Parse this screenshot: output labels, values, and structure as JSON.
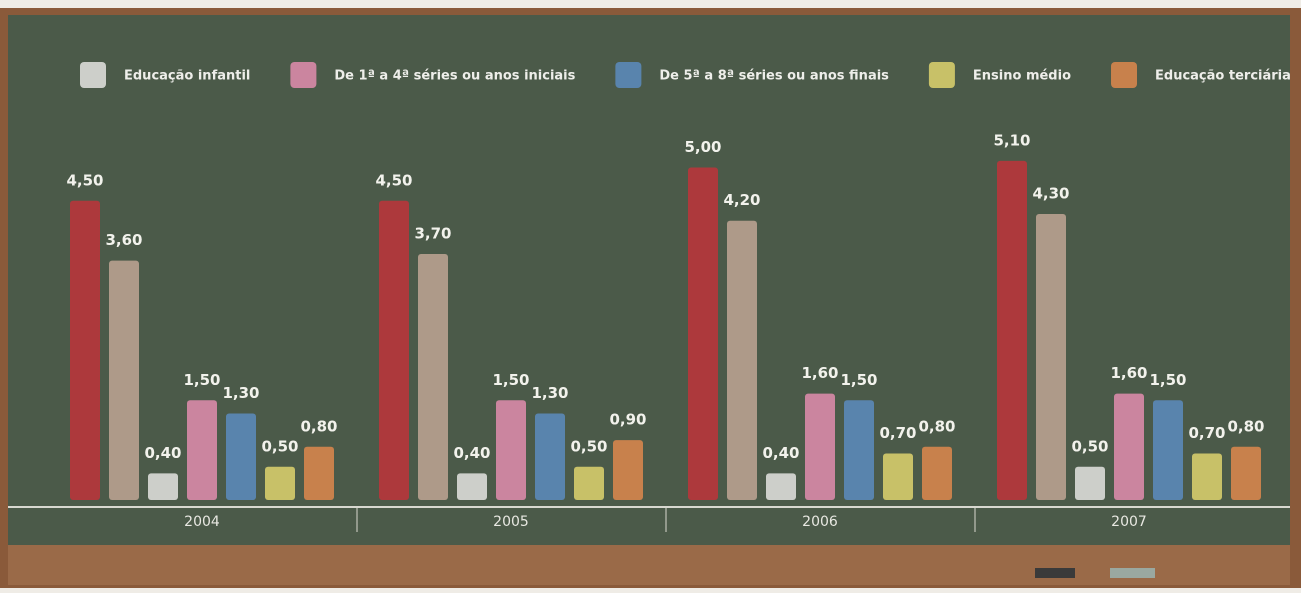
{
  "chart_data": {
    "type": "bar",
    "categories": [
      "2004",
      "2005",
      "2006",
      "2007"
    ],
    "series": [
      {
        "color": "#b8353b",
        "values": [
          4.5,
          4.5,
          5.0,
          5.1
        ],
        "value_labels": [
          "4,50",
          "4,50",
          "5,00",
          "5,10"
        ]
      },
      {
        "color": "#b9a190",
        "values": [
          3.6,
          3.7,
          4.2,
          4.3
        ],
        "value_labels": [
          "3,60",
          "3,70",
          "4,20",
          "4,30"
        ]
      },
      {
        "name": "Educação infantil",
        "color": "#dcdcd8",
        "values": [
          0.4,
          0.4,
          0.4,
          0.5
        ],
        "value_labels": [
          "0,40",
          "0,40",
          "0,40",
          "0,50"
        ]
      },
      {
        "name": "De 1ª a 4ª séries ou anos iniciais",
        "color": "#d98aa8",
        "values": [
          1.5,
          1.5,
          1.6,
          1.6
        ],
        "value_labels": [
          "1,50",
          "1,50",
          "1,60",
          "1,60"
        ]
      },
      {
        "name": "De 5ª a 8ª séries ou anos finais",
        "color": "#5b88b8",
        "values": [
          1.3,
          1.3,
          1.5,
          1.5
        ],
        "value_labels": [
          "1,30",
          "1,30",
          "1,50",
          "1,50"
        ]
      },
      {
        "name": "Ensino médio",
        "color": "#d6cc6c",
        "values": [
          0.5,
          0.5,
          0.7,
          0.7
        ],
        "value_labels": [
          "0,50",
          "0,50",
          "0,70",
          "0,70"
        ]
      },
      {
        "name": "Educação terciária",
        "color": "#d6854c",
        "values": [
          0.8,
          0.9,
          0.8,
          0.8
        ],
        "value_labels": [
          "0,80",
          "0,90",
          "0,80",
          "0,80"
        ]
      }
    ]
  }
}
